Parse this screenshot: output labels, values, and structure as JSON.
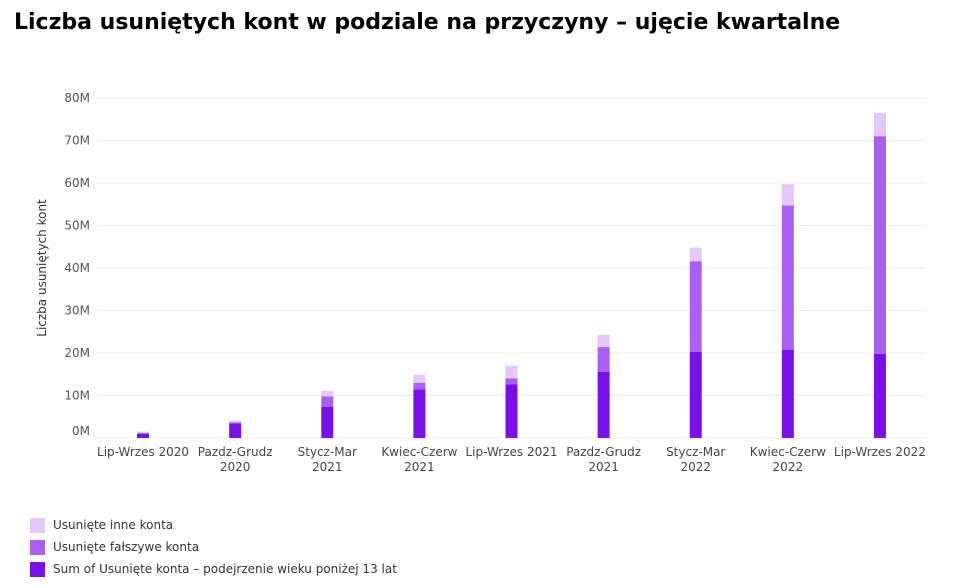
{
  "chart_data": {
    "type": "bar",
    "stacked": true,
    "title": "Liczba usuniętych kont w podziale na przyczyny – ujęcie kwartalne",
    "ylabel": "Liczba usuniętych kont",
    "xlabel": "",
    "ylim": [
      0,
      80000000
    ],
    "yticks": [
      {
        "value": 0,
        "label": "0M"
      },
      {
        "value": 10000000,
        "label": "10M"
      },
      {
        "value": 20000000,
        "label": "20M"
      },
      {
        "value": 30000000,
        "label": "30M"
      },
      {
        "value": 40000000,
        "label": "40M"
      },
      {
        "value": 50000000,
        "label": "50M"
      },
      {
        "value": 60000000,
        "label": "60M"
      },
      {
        "value": 70000000,
        "label": "70M"
      },
      {
        "value": 80000000,
        "label": "80M"
      }
    ],
    "grid": true,
    "legend_position": "bottom-left",
    "categories": [
      [
        "Lip-Wrzes 2020"
      ],
      [
        "Pazdz-Grudz",
        "2020"
      ],
      [
        "Stycz-Mar",
        "2021"
      ],
      [
        "Kwiec-Czerw",
        "2021"
      ],
      [
        "Lip-Wrzes 2021"
      ],
      [
        "Pazdz-Grudz",
        "2021"
      ],
      [
        "Stycz-Mar",
        "2022"
      ],
      [
        "Kwiec-Czerw",
        "2022"
      ],
      [
        "Lip-Wrzes 2022"
      ]
    ],
    "series": [
      {
        "name": "Sum of Usunięte konta – podejrzenie wieku poniżej 13 lat",
        "color": "#7a10e8",
        "values": [
          1000000,
          3400000,
          7300000,
          11400000,
          12600000,
          15600000,
          20300000,
          20700000,
          19800000
        ]
      },
      {
        "name": "Usunięte fałszywe konta",
        "color": "#a95ff0",
        "values": [
          200000,
          300000,
          2500000,
          1600000,
          1400000,
          5800000,
          21300000,
          34000000,
          51200000
        ]
      },
      {
        "name": "Usunięte inne konta",
        "color": "#e4c8f7",
        "values": [
          300000,
          400000,
          1300000,
          1900000,
          3000000,
          2900000,
          3200000,
          5000000,
          5500000
        ]
      }
    ]
  }
}
